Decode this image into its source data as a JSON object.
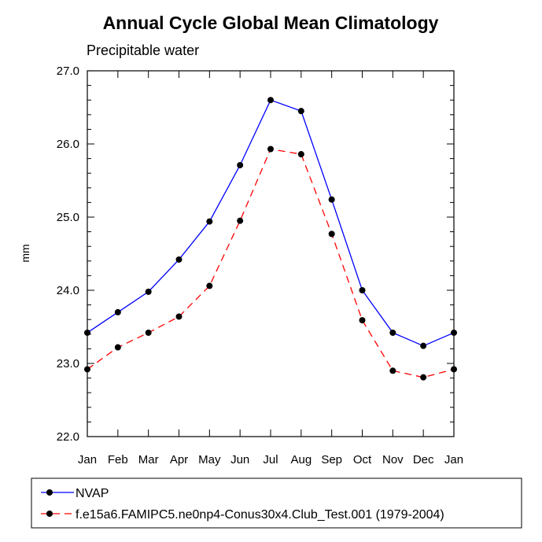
{
  "chart_data": {
    "type": "line",
    "title": "Annual Cycle Global Mean Climatology",
    "subtitle": "Precipitable water",
    "xlabel": "",
    "ylabel": "mm",
    "categories": [
      "Jan",
      "Feb",
      "Mar",
      "Apr",
      "May",
      "Jun",
      "Jul",
      "Aug",
      "Sep",
      "Oct",
      "Nov",
      "Dec",
      "Jan"
    ],
    "ylim": [
      22.0,
      27.0
    ],
    "yticks": [
      "22.0",
      "23.0",
      "24.0",
      "25.0",
      "26.0",
      "27.0"
    ],
    "grid": false,
    "legend_position": "bottom",
    "series": [
      {
        "name": "NVAP",
        "color": "#0000ff",
        "line_style": "solid",
        "marker": "filled-circle",
        "values": [
          23.42,
          23.7,
          23.98,
          24.42,
          24.94,
          25.71,
          26.6,
          26.45,
          25.24,
          24.0,
          23.42,
          23.24,
          23.42
        ]
      },
      {
        "name": "f.e15a6.FAMIPC5.ne0np4-Conus30x4.Club_Test.001 (1979-2004)",
        "color": "#ff0000",
        "line_style": "dashed",
        "marker": "filled-circle",
        "values": [
          22.92,
          23.22,
          23.42,
          23.64,
          24.06,
          24.95,
          25.93,
          25.86,
          24.77,
          23.59,
          22.9,
          22.81,
          22.92
        ]
      }
    ]
  }
}
